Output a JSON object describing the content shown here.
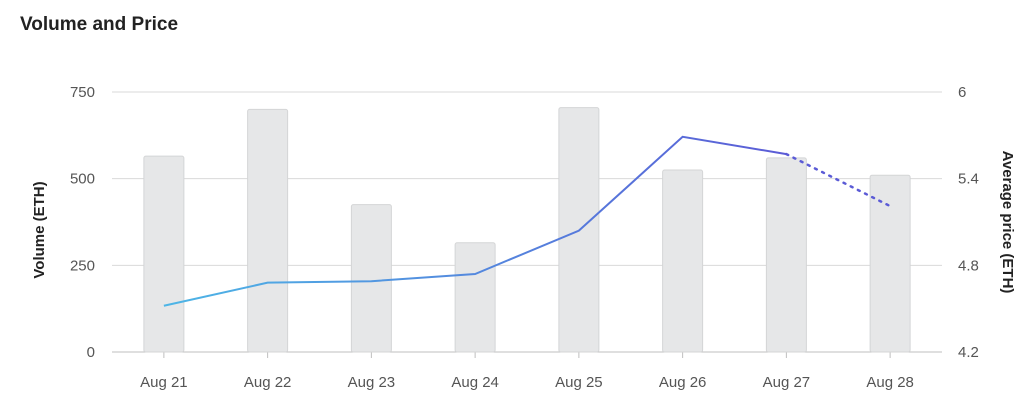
{
  "chart_data": {
    "type": "bar",
    "title": "Volume and Price",
    "categories": [
      "Aug 21",
      "Aug 22",
      "Aug 23",
      "Aug 24",
      "Aug 25",
      "Aug 26",
      "Aug 27",
      "Aug 28"
    ],
    "series": [
      {
        "type": "bar",
        "axis": "left",
        "values": [
          565,
          700,
          425,
          315,
          705,
          525,
          560,
          510
        ],
        "color": "#e6e7e8"
      },
      {
        "type": "line",
        "axis": "right",
        "values": [
          4.52,
          4.68,
          4.69,
          4.74,
          5.04,
          5.69,
          5.57,
          5.21
        ],
        "dashed_from_index": 6,
        "color_start": "#4db6e6",
        "color_end": "#5b5bd6"
      }
    ],
    "ylabel": "Volume (ETH)",
    "ylabel_right": "Average price (ETH)",
    "ylim": [
      0,
      750
    ],
    "ylim_right": [
      4.2,
      6
    ],
    "yticks": [
      "0",
      "250",
      "500",
      "750"
    ],
    "yticks_right": [
      "4.2",
      "4.8",
      "5.4",
      "6"
    ],
    "grid": true
  }
}
